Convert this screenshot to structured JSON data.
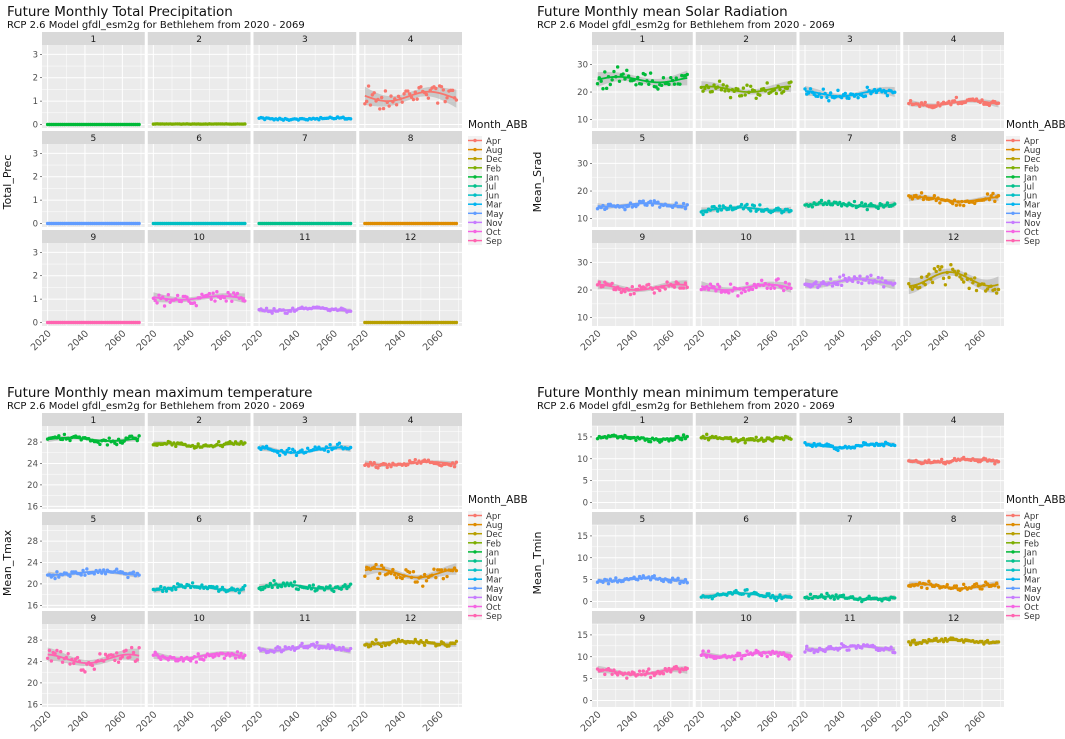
{
  "colors": {
    "Apr": "#F8766D",
    "Aug": "#DE8C00",
    "Dec": "#B79F00",
    "Feb": "#7CAE00",
    "Jan": "#00BA38",
    "Jul": "#00C08B",
    "Jun": "#00BFC4",
    "Mar": "#00B4F0",
    "May": "#619CFF",
    "Nov": "#C77CFF",
    "Oct": "#F564E3",
    "Sep": "#FF64B0"
  },
  "facet_order": [
    "Jan",
    "Feb",
    "Mar",
    "Apr",
    "May",
    "Jun",
    "Jul",
    "Aug",
    "Sep",
    "Oct",
    "Nov",
    "Dec"
  ],
  "chart_data": [
    {
      "type": "scatter",
      "title": "Future Monthly Total Precipitation",
      "subtitle": "RCP 2.6 Model gfdl_esm2g for Bethlehem from 2020 - 2069",
      "ylabel": "Total_Prec",
      "xlabel": "",
      "ylim": [
        -0.15,
        3.4
      ],
      "yticks": [
        0,
        1,
        2,
        3
      ],
      "xticks": [
        2020,
        2040,
        2060
      ],
      "xlim": [
        2017,
        2072
      ],
      "legend_title": "Month_ABB",
      "legend": [
        "Apr",
        "Aug",
        "Dec",
        "Feb",
        "Jan",
        "Jul",
        "Jun",
        "Mar",
        "May",
        "Nov",
        "Oct",
        "Sep"
      ],
      "facets": [
        "1",
        "2",
        "3",
        "4",
        "5",
        "6",
        "7",
        "8",
        "9",
        "10",
        "11",
        "12"
      ],
      "series": [
        {
          "name": "Jan",
          "mean": 0.0,
          "spread": 0.0,
          "amp": 0.0
        },
        {
          "name": "Feb",
          "mean": 0.02,
          "spread": 0.01,
          "amp": 0.0
        },
        {
          "name": "Mar",
          "mean": 0.25,
          "spread": 0.08,
          "amp": 0.03
        },
        {
          "name": "Apr",
          "mean": 1.2,
          "spread": 0.65,
          "amp": 0.2
        },
        {
          "name": "May",
          "mean": 0.0,
          "spread": 0.0,
          "amp": 0.0
        },
        {
          "name": "Jun",
          "mean": 0.0,
          "spread": 0.0,
          "amp": 0.0
        },
        {
          "name": "Jul",
          "mean": 0.0,
          "spread": 0.0,
          "amp": 0.0
        },
        {
          "name": "Aug",
          "mean": 0.0,
          "spread": 0.0,
          "amp": 0.0
        },
        {
          "name": "Sep",
          "mean": 0.0,
          "spread": 0.0,
          "amp": 0.0
        },
        {
          "name": "Oct",
          "mean": 1.05,
          "spread": 0.35,
          "amp": 0.08
        },
        {
          "name": "Nov",
          "mean": 0.55,
          "spread": 0.15,
          "amp": 0.05
        },
        {
          "name": "Dec",
          "mean": 0.0,
          "spread": 0.0,
          "amp": 0.0
        }
      ]
    },
    {
      "type": "scatter",
      "title": "Future Monthly mean Solar Radiation",
      "subtitle": "RCP 2.6 Model gfdl_esm2g for Bethlehem from 2020 - 2069",
      "ylabel": "Mean_Srad",
      "xlabel": "",
      "ylim": [
        7,
        37
      ],
      "yticks": [
        10,
        20,
        30
      ],
      "xticks": [
        2020,
        2040,
        2060
      ],
      "xlim": [
        2017,
        2072
      ],
      "legend_title": "Month_ABB",
      "legend": [
        "Apr",
        "Aug",
        "Dec",
        "Feb",
        "Jan",
        "Jul",
        "Jun",
        "Mar",
        "May",
        "Nov",
        "Oct",
        "Sep"
      ],
      "facets": [
        "1",
        "2",
        "3",
        "4",
        "5",
        "6",
        "7",
        "8",
        "9",
        "10",
        "11",
        "12"
      ],
      "series": [
        {
          "name": "Jan",
          "mean": 24.5,
          "spread": 4.5,
          "amp": 1.0
        },
        {
          "name": "Feb",
          "mean": 21,
          "spread": 3.5,
          "amp": 1.0
        },
        {
          "name": "Mar",
          "mean": 19.5,
          "spread": 3.0,
          "amp": 1.0
        },
        {
          "name": "Apr",
          "mean": 16,
          "spread": 2.0,
          "amp": 0.8
        },
        {
          "name": "May",
          "mean": 15,
          "spread": 1.8,
          "amp": 0.6
        },
        {
          "name": "Jun",
          "mean": 13.5,
          "spread": 2.0,
          "amp": 0.6
        },
        {
          "name": "Jul",
          "mean": 15,
          "spread": 2.0,
          "amp": 0.6
        },
        {
          "name": "Aug",
          "mean": 17,
          "spread": 2.2,
          "amp": 0.8
        },
        {
          "name": "Sep",
          "mean": 21,
          "spread": 3.0,
          "amp": 1.0
        },
        {
          "name": "Oct",
          "mean": 21,
          "spread": 3.0,
          "amp": 1.0
        },
        {
          "name": "Nov",
          "mean": 23,
          "spread": 3.0,
          "amp": 1.0
        },
        {
          "name": "Dec",
          "mean": 24,
          "spread": 5.0,
          "amp": 2.5
        }
      ]
    },
    {
      "type": "scatter",
      "title": "Future Monthly mean maximum temperature",
      "subtitle": "RCP 2.6 Model gfdl_esm2g for Bethlehem from 2020 - 2069",
      "ylabel": "Mean_Tmax",
      "xlabel": "",
      "ylim": [
        15.5,
        31
      ],
      "yticks": [
        16,
        20,
        24,
        28
      ],
      "xticks": [
        2020,
        2040,
        2060
      ],
      "xlim": [
        2017,
        2072
      ],
      "legend_title": "Month_ABB",
      "legend": [
        "Apr",
        "Aug",
        "Dec",
        "Feb",
        "Jan",
        "Jul",
        "Jun",
        "Mar",
        "May",
        "Nov",
        "Oct",
        "Sep"
      ],
      "facets": [
        "1",
        "2",
        "3",
        "4",
        "5",
        "6",
        "7",
        "8",
        "9",
        "10",
        "11",
        "12"
      ],
      "series": [
        {
          "name": "Jan",
          "mean": 28.5,
          "spread": 0.9,
          "amp": 0.3
        },
        {
          "name": "Feb",
          "mean": 27.5,
          "spread": 0.8,
          "amp": 0.3
        },
        {
          "name": "Mar",
          "mean": 26.5,
          "spread": 1.0,
          "amp": 0.5
        },
        {
          "name": "Apr",
          "mean": 24,
          "spread": 0.9,
          "amp": 0.3
        },
        {
          "name": "May",
          "mean": 22,
          "spread": 0.9,
          "amp": 0.3
        },
        {
          "name": "Jun",
          "mean": 19.2,
          "spread": 0.9,
          "amp": 0.4
        },
        {
          "name": "Jul",
          "mean": 19.5,
          "spread": 1.0,
          "amp": 0.4
        },
        {
          "name": "Aug",
          "mean": 22,
          "spread": 1.8,
          "amp": 0.8
        },
        {
          "name": "Sep",
          "mean": 24.5,
          "spread": 2.2,
          "amp": 0.8
        },
        {
          "name": "Oct",
          "mean": 25,
          "spread": 1.2,
          "amp": 0.5
        },
        {
          "name": "Nov",
          "mean": 26.5,
          "spread": 1.0,
          "amp": 0.5
        },
        {
          "name": "Dec",
          "mean": 27.5,
          "spread": 0.9,
          "amp": 0.3
        }
      ]
    },
    {
      "type": "scatter",
      "title": "Future Monthly mean minimum temperature",
      "subtitle": "RCP 2.6 Model gfdl_esm2g for Bethlehem from 2020 - 2069",
      "ylabel": "Mean_Tmin",
      "xlabel": "",
      "ylim": [
        -1.5,
        17.5
      ],
      "yticks": [
        0,
        5,
        10,
        15
      ],
      "xticks": [
        2020,
        2040,
        2060
      ],
      "xlim": [
        2017,
        2072
      ],
      "legend_title": "Month_ABB",
      "legend": [
        "Apr",
        "Aug",
        "Dec",
        "Feb",
        "Jan",
        "Jul",
        "Jun",
        "Mar",
        "May",
        "Nov",
        "Oct",
        "Sep"
      ],
      "facets": [
        "1",
        "2",
        "3",
        "4",
        "5",
        "6",
        "7",
        "8",
        "9",
        "10",
        "11",
        "12"
      ],
      "series": [
        {
          "name": "Jan",
          "mean": 14.8,
          "spread": 0.9,
          "amp": 0.3
        },
        {
          "name": "Feb",
          "mean": 14.5,
          "spread": 0.9,
          "amp": 0.3
        },
        {
          "name": "Mar",
          "mean": 13,
          "spread": 0.9,
          "amp": 0.4
        },
        {
          "name": "Apr",
          "mean": 9.5,
          "spread": 0.9,
          "amp": 0.4
        },
        {
          "name": "May",
          "mean": 5,
          "spread": 0.9,
          "amp": 0.3
        },
        {
          "name": "Jun",
          "mean": 1.5,
          "spread": 1.1,
          "amp": 0.4
        },
        {
          "name": "Jul",
          "mean": 0.8,
          "spread": 1.0,
          "amp": 0.3
        },
        {
          "name": "Aug",
          "mean": 3.5,
          "spread": 1.2,
          "amp": 0.5
        },
        {
          "name": "Sep",
          "mean": 6.5,
          "spread": 1.4,
          "amp": 0.6
        },
        {
          "name": "Oct",
          "mean": 10.5,
          "spread": 1.2,
          "amp": 0.5
        },
        {
          "name": "Nov",
          "mean": 12,
          "spread": 1.0,
          "amp": 0.4
        },
        {
          "name": "Dec",
          "mean": 13.5,
          "spread": 0.8,
          "amp": 0.3
        }
      ]
    }
  ]
}
